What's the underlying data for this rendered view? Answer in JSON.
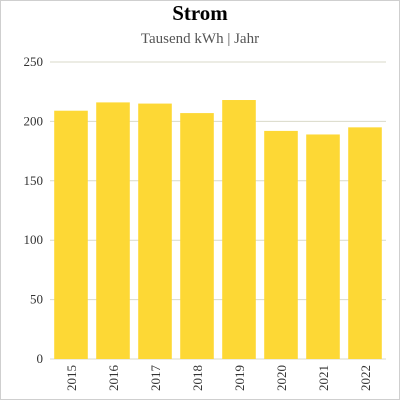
{
  "chart_data": {
    "type": "bar",
    "title": "Strom",
    "subtitle": "Tausend kWh | Jahr",
    "categories": [
      "2015",
      "2016",
      "2017",
      "2018",
      "2019",
      "2020",
      "2021",
      "2022"
    ],
    "values": [
      209,
      216,
      215,
      207,
      218,
      192,
      189,
      195
    ],
    "ylim": [
      0,
      250
    ],
    "yticks": [
      0,
      50,
      100,
      150,
      200,
      250
    ],
    "grid": true,
    "bar_color": "#fdd835",
    "grid_color": "#d9d9c8"
  }
}
